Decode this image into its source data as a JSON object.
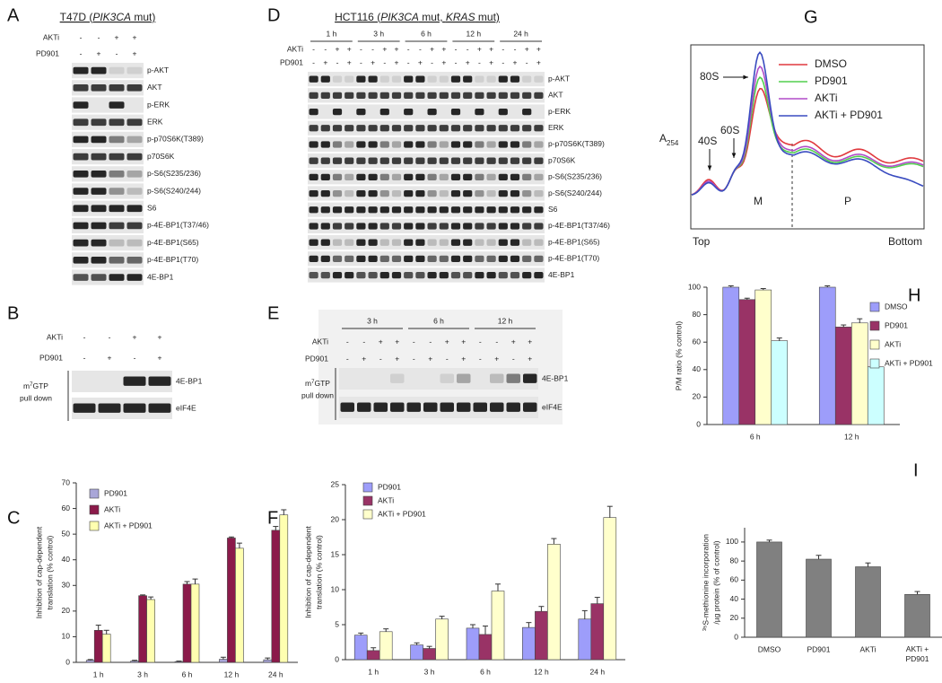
{
  "panel_labels": [
    "A",
    "B",
    "C",
    "D",
    "E",
    "F",
    "G",
    "H",
    "I"
  ],
  "blot_A": {
    "title_parts": [
      "T47D (",
      "PIK3CA",
      " mut)"
    ],
    "treatments": [
      {
        "name": "AKTi",
        "signs": [
          "-",
          "-",
          "+",
          "+"
        ]
      },
      {
        "name": "PD901",
        "signs": [
          "-",
          "+",
          "-",
          "+"
        ]
      }
    ],
    "bands": [
      "p-AKT",
      "AKT",
      "p-ERK",
      "ERK",
      "p-p70S6K(T389)",
      "p70S6K",
      "p-S6(S235/236)",
      "p-S6(S240/244)",
      "S6",
      "p-4E-BP1(T37/46)",
      "p-4E-BP1(S65)",
      "p-4E-BP1(T70)",
      "4E-BP1"
    ]
  },
  "blot_D": {
    "title_parts": [
      "HCT116 (",
      "PIK3CA",
      " mut, ",
      "KRAS",
      " mut)"
    ],
    "timepoints": [
      "1 h",
      "3 h",
      "6 h",
      "12 h",
      "24 h"
    ],
    "treatments": [
      {
        "name": "AKTi",
        "signs": [
          "-",
          "-",
          "+",
          "+",
          "-",
          "-",
          "+",
          "+",
          "-",
          "-",
          "+",
          "+",
          "-",
          "-",
          "+",
          "+",
          "-",
          "-",
          "+",
          "+"
        ]
      },
      {
        "name": "PD901",
        "signs": [
          "-",
          "+",
          "-",
          "+",
          "-",
          "+",
          "-",
          "+",
          "-",
          "+",
          "-",
          "+",
          "-",
          "+",
          "-",
          "+",
          "-",
          "+",
          "-",
          "+"
        ]
      }
    ],
    "bands": [
      "p-AKT",
      "AKT",
      "p-ERK",
      "ERK",
      "p-p70S6K(T389)",
      "p70S6K",
      "p-S6(S235/236)",
      "p-S6(S240/244)",
      "S6",
      "p-4E-BP1(T37/46)",
      "p-4E-BP1(S65)",
      "p-4E-BP1(T70)",
      "4E-BP1"
    ]
  },
  "blot_B": {
    "treatments": [
      {
        "name": "AKTi",
        "signs": [
          "-",
          "-",
          "+",
          "+"
        ]
      },
      {
        "name": "PD901",
        "signs": [
          "-",
          "+",
          "-",
          "+"
        ]
      }
    ],
    "side_label_parts": [
      "m",
      "7",
      "GTP",
      "pull down"
    ],
    "bands": [
      "4E-BP1",
      "eIF4E"
    ]
  },
  "blot_E": {
    "timepoints": [
      "3 h",
      "6 h",
      "12 h"
    ],
    "treatments": [
      {
        "name": "AKTi",
        "signs": [
          "-",
          "-",
          "+",
          "+",
          "-",
          "-",
          "+",
          "+",
          "-",
          "-",
          "+",
          "+"
        ]
      },
      {
        "name": "PD901",
        "signs": [
          "-",
          "+",
          "-",
          "+",
          "-",
          "+",
          "-",
          "+",
          "-",
          "+",
          "-",
          "+"
        ]
      }
    ],
    "side_label_parts": [
      "m",
      "7",
      "GTP",
      "pull down"
    ],
    "bands": [
      "4E-BP1",
      "eIF4E"
    ]
  },
  "profile_G": {
    "ylabel_parts": [
      "A",
      "254"
    ],
    "peak_labels": [
      "80S",
      "60S",
      "40S"
    ],
    "region_labels": [
      "M",
      "P"
    ],
    "x_labels": [
      "Top",
      "Bottom"
    ],
    "legend": [
      {
        "name": "DMSO",
        "color": "#e0393e"
      },
      {
        "name": "PD901",
        "color": "#52cf4f"
      },
      {
        "name": "AKTi",
        "color": "#b04cc8"
      },
      {
        "name": "AKTi + PD901",
        "color": "#3a4cc0"
      }
    ]
  },
  "chart_data": [
    {
      "type": "bar",
      "ylabel": [
        "Inhibition of cap-dependent",
        "translation (% control)"
      ],
      "categories": [
        "1 h",
        "3 h",
        "6 h",
        "12 h",
        "24 h"
      ],
      "series": [
        {
          "name": "PD901",
          "color": "#a9a6d8",
          "values": [
            0.8,
            0.5,
            0.3,
            1.2,
            1.0
          ],
          "errors": [
            0.3,
            0.3,
            0.2,
            0.8,
            0.7
          ]
        },
        {
          "name": "AKTi",
          "color": "#8b1a4a",
          "values": [
            12.5,
            26,
            30.5,
            48.5,
            51.5
          ],
          "errors": [
            2,
            0.3,
            1,
            0.4,
            1.5
          ]
        },
        {
          "name": "AKTi + PD901",
          "color": "#ffffb0",
          "values": [
            11,
            24.5,
            30.5,
            44.5,
            57.5
          ],
          "errors": [
            1.5,
            1,
            2,
            2,
            2
          ]
        }
      ],
      "ylim": [
        0,
        70
      ],
      "yticks": [
        0,
        10,
        20,
        30,
        40,
        50,
        60,
        70
      ]
    },
    {
      "type": "bar",
      "ylabel": [
        "Inhibition of cap-dependent",
        "translation (% control)"
      ],
      "categories": [
        "1 h",
        "3 h",
        "6 h",
        "12 h",
        "24 h"
      ],
      "series": [
        {
          "name": "PD901",
          "color": "#9d9dfa",
          "values": [
            3.5,
            2.1,
            4.5,
            4.6,
            5.8
          ],
          "errors": [
            0.3,
            0.3,
            0.5,
            0.7,
            1.2
          ]
        },
        {
          "name": "AKTi",
          "color": "#993366",
          "values": [
            1.3,
            1.6,
            3.6,
            6.9,
            8.0
          ],
          "errors": [
            0.4,
            0.3,
            1.2,
            0.7,
            0.9
          ]
        },
        {
          "name": "AKTi + PD901",
          "color": "#ffffcc",
          "values": [
            4.0,
            5.8,
            9.8,
            16.5,
            20.3
          ],
          "errors": [
            0.4,
            0.4,
            1,
            0.8,
            1.6
          ]
        }
      ],
      "ylim": [
        0,
        25
      ],
      "yticks": [
        0,
        5,
        10,
        15,
        20,
        25
      ]
    },
    {
      "type": "bar",
      "ylabel": [
        "P/M ratio (% control)"
      ],
      "categories": [
        "6 h",
        "12 h"
      ],
      "series": [
        {
          "name": "DMSO",
          "color": "#9d9dfa",
          "values": [
            100,
            100
          ],
          "errors": [
            1,
            1
          ]
        },
        {
          "name": "PD901",
          "color": "#993366",
          "values": [
            91,
            71
          ],
          "errors": [
            1,
            1.5
          ]
        },
        {
          "name": "AKTi",
          "color": "#ffffcc",
          "values": [
            98,
            74
          ],
          "errors": [
            1,
            3
          ]
        },
        {
          "name": "AKTi + PD901",
          "color": "#ccffff",
          "values": [
            61,
            42
          ],
          "errors": [
            2,
            3
          ]
        }
      ],
      "ylim": [
        0,
        100
      ],
      "yticks": [
        0,
        20,
        40,
        60,
        80,
        100
      ]
    },
    {
      "type": "bar",
      "ylabel": [
        "³⁵S-methionine incorporation",
        "/µg protein (% of control)"
      ],
      "categories": [
        "DMSO",
        "PD901",
        "AKTi",
        "AKTi +\nPD901"
      ],
      "values": [
        100,
        82,
        74,
        45
      ],
      "errors": [
        2,
        4,
        4,
        3
      ],
      "color": "#808080",
      "ylim": [
        0,
        115
      ],
      "yticks": [
        0,
        20,
        40,
        60,
        80,
        100
      ]
    }
  ]
}
